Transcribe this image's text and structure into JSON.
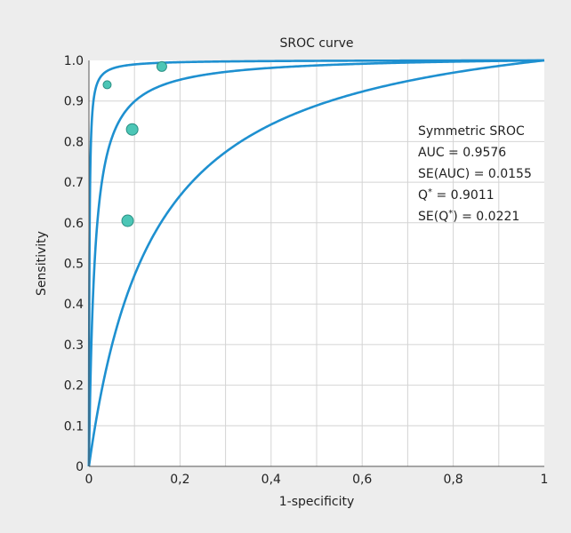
{
  "chart_data": {
    "type": "scatter",
    "title": "SROC curve",
    "xlabel": "1-specificity",
    "ylabel": "Sensitivity",
    "xlim": [
      0,
      1
    ],
    "ylim": [
      0,
      1
    ],
    "grid": true,
    "x_ticks": [
      {
        "value": 0,
        "label": "0"
      },
      {
        "value": 0.2,
        "label": "0,2"
      },
      {
        "value": 0.4,
        "label": "0,4"
      },
      {
        "value": 0.6,
        "label": "0,6"
      },
      {
        "value": 0.8,
        "label": "0,8"
      },
      {
        "value": 1,
        "label": "1"
      }
    ],
    "y_ticks": [
      {
        "value": 0,
        "label": "0"
      },
      {
        "value": 0.1,
        "label": "0.1"
      },
      {
        "value": 0.2,
        "label": "0.2"
      },
      {
        "value": 0.3,
        "label": "0.3"
      },
      {
        "value": 0.4,
        "label": "0.4"
      },
      {
        "value": 0.5,
        "label": "0.5"
      },
      {
        "value": 0.6,
        "label": "0.6"
      },
      {
        "value": 0.7,
        "label": "0.7"
      },
      {
        "value": 0.8,
        "label": "0.8"
      },
      {
        "value": 0.9,
        "label": "0.9"
      },
      {
        "value": 1,
        "label": "1.0"
      }
    ],
    "points": [
      {
        "x": 0.04,
        "y": 0.94,
        "weight": "small"
      },
      {
        "x": 0.16,
        "y": 0.985,
        "weight": "medium"
      },
      {
        "x": 0.095,
        "y": 0.83,
        "weight": "large"
      },
      {
        "x": 0.085,
        "y": 0.605,
        "weight": "large"
      }
    ],
    "curves": [
      {
        "role": "upper-bound",
        "dor": 900
      },
      {
        "role": "sroc",
        "dor": 80
      },
      {
        "role": "lower-bound",
        "dor": 8
      }
    ],
    "annotation": [
      "Symmetric SROC",
      "AUC = 0.9576",
      "SE(AUC) = 0.0155",
      "Q* = 0.9011",
      "SE(Q*) = 0.0221"
    ],
    "colors": {
      "background": "#ededed",
      "plot_background": "#ffffff",
      "grid": "#d4d4d4",
      "curve": "#1e90d0",
      "point_fill": "#4cc6b6",
      "point_stroke": "#2a8f83",
      "text": "#222222"
    }
  }
}
